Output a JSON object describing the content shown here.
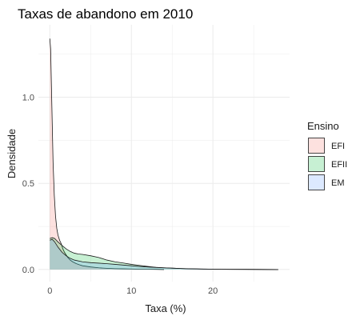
{
  "chart_data": {
    "type": "area",
    "title": "Taxas de abandono em 2010",
    "xlabel": "Taxa (%)",
    "ylabel": "Densidade",
    "xlim": [
      -1.4,
      29.4
    ],
    "ylim": [
      -0.07,
      1.42
    ],
    "xticks": [
      0,
      10,
      20
    ],
    "yticks": [
      0.0,
      0.5,
      1.0
    ],
    "ytick_labels": [
      "0.0",
      "0.5",
      "1.0"
    ],
    "grid": true,
    "legend": {
      "title": "Ensino",
      "position": "right"
    },
    "series": [
      {
        "name": "EFI",
        "color": "#f8766d",
        "x": [
          0,
          0.1,
          0.25,
          0.4,
          0.55,
          0.7,
          0.85,
          1.0,
          1.2,
          1.4,
          1.6,
          1.8,
          2.0,
          2.2,
          2.5,
          2.8,
          3.2,
          3.6,
          4.0,
          5,
          6,
          7,
          8,
          9,
          10,
          11,
          12,
          13,
          14
        ],
        "y": [
          1.34,
          1.28,
          0.95,
          0.62,
          0.43,
          0.31,
          0.24,
          0.2,
          0.17,
          0.15,
          0.12,
          0.1,
          0.085,
          0.07,
          0.055,
          0.045,
          0.035,
          0.028,
          0.022,
          0.015,
          0.01,
          0.007,
          0.005,
          0.004,
          0.003,
          0.002,
          0.0015,
          0.001,
          0.0
        ]
      },
      {
        "name": "EFII",
        "color": "#00ba38",
        "x": [
          0,
          0.3,
          0.6,
          1.0,
          1.5,
          2.0,
          2.5,
          3.0,
          3.5,
          4.0,
          5,
          6,
          7,
          8,
          9,
          10,
          11,
          12,
          13,
          14,
          15,
          16,
          17,
          18,
          19,
          20,
          22,
          24,
          26,
          28
        ],
        "y": [
          0.18,
          0.185,
          0.18,
          0.16,
          0.14,
          0.12,
          0.105,
          0.095,
          0.09,
          0.088,
          0.08,
          0.07,
          0.055,
          0.045,
          0.038,
          0.03,
          0.024,
          0.018,
          0.013,
          0.01,
          0.008,
          0.006,
          0.004,
          0.003,
          0.002,
          0.002,
          0.001,
          0.001,
          0.0005,
          0.0
        ]
      },
      {
        "name": "EM",
        "color": "#619cff",
        "x": [
          0,
          0.3,
          0.6,
          1.0,
          1.5,
          2.0,
          2.5,
          3.0,
          4.0,
          5,
          6,
          7,
          8,
          9,
          10,
          11,
          12,
          13,
          14,
          15,
          16,
          17,
          18,
          19,
          20,
          22,
          24,
          26,
          28
        ],
        "y": [
          0.17,
          0.175,
          0.16,
          0.13,
          0.1,
          0.08,
          0.065,
          0.055,
          0.045,
          0.04,
          0.037,
          0.034,
          0.03,
          0.026,
          0.022,
          0.018,
          0.015,
          0.012,
          0.01,
          0.008,
          0.006,
          0.005,
          0.004,
          0.003,
          0.002,
          0.0015,
          0.001,
          0.0005,
          0.0
        ]
      }
    ]
  }
}
